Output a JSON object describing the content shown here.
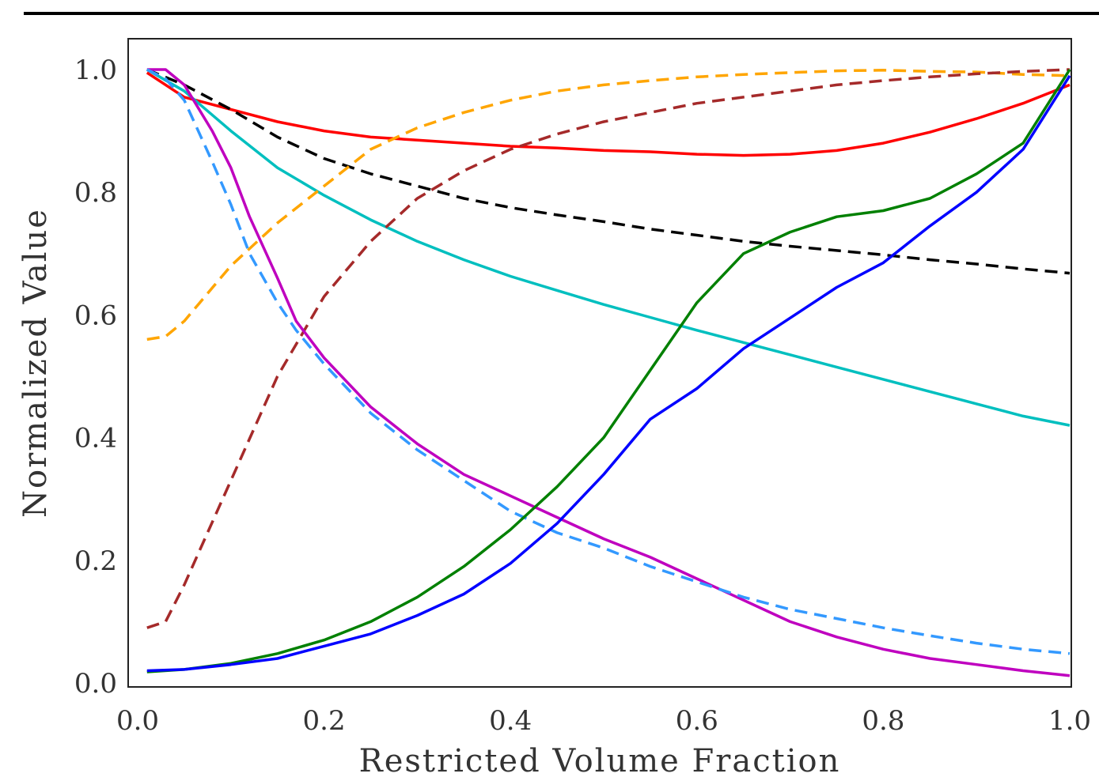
{
  "chart_data": {
    "type": "line",
    "title": "",
    "xlabel": "Restricted Volume Fraction",
    "ylabel": "Normalized Value",
    "xlim": [
      0.0,
      1.0
    ],
    "ylim": [
      0.0,
      1.0
    ],
    "x_ticks": [
      "0.0",
      "0.2",
      "0.4",
      "0.6",
      "0.8",
      "1.0"
    ],
    "y_ticks": [
      "0.0",
      "0.2",
      "0.4",
      "0.6",
      "0.8",
      "1.0"
    ],
    "grid": false,
    "legend": "none",
    "series": [
      {
        "color": "#ff0000",
        "style": "solid",
        "x": [
          0.01,
          0.05,
          0.1,
          0.15,
          0.2,
          0.25,
          0.3,
          0.35,
          0.4,
          0.45,
          0.5,
          0.55,
          0.6,
          0.65,
          0.7,
          0.75,
          0.8,
          0.85,
          0.9,
          0.95,
          1.0
        ],
        "y": [
          0.995,
          0.955,
          0.935,
          0.915,
          0.9,
          0.89,
          0.885,
          0.88,
          0.875,
          0.872,
          0.868,
          0.866,
          0.862,
          0.86,
          0.862,
          0.868,
          0.88,
          0.898,
          0.92,
          0.945,
          0.975
        ]
      },
      {
        "color": "#00bfbf",
        "style": "solid",
        "x": [
          0.01,
          0.05,
          0.1,
          0.15,
          0.2,
          0.25,
          0.3,
          0.35,
          0.4,
          0.45,
          0.5,
          0.55,
          0.6,
          0.65,
          0.7,
          0.75,
          0.8,
          0.85,
          0.9,
          0.95,
          1.0
        ],
        "y": [
          1.0,
          0.965,
          0.9,
          0.84,
          0.795,
          0.755,
          0.72,
          0.69,
          0.663,
          0.64,
          0.617,
          0.596,
          0.575,
          0.555,
          0.535,
          0.515,
          0.495,
          0.475,
          0.455,
          0.435,
          0.42
        ]
      },
      {
        "color": "#000000",
        "style": "dashed",
        "x": [
          0.01,
          0.05,
          0.1,
          0.15,
          0.2,
          0.25,
          0.3,
          0.35,
          0.4,
          0.45,
          0.5,
          0.55,
          0.6,
          0.65,
          0.7,
          0.75,
          0.8,
          0.85,
          0.9,
          0.95,
          1.0
        ],
        "y": [
          1.0,
          0.975,
          0.935,
          0.89,
          0.855,
          0.83,
          0.81,
          0.79,
          0.775,
          0.763,
          0.752,
          0.74,
          0.73,
          0.72,
          0.712,
          0.705,
          0.698,
          0.69,
          0.683,
          0.675,
          0.668
        ]
      },
      {
        "color": "#ffa500",
        "style": "dashed",
        "x": [
          0.01,
          0.03,
          0.05,
          0.1,
          0.15,
          0.2,
          0.25,
          0.3,
          0.35,
          0.4,
          0.45,
          0.5,
          0.55,
          0.6,
          0.65,
          0.7,
          0.75,
          0.8,
          0.85,
          0.9,
          0.95,
          1.0
        ],
        "y": [
          0.56,
          0.565,
          0.59,
          0.68,
          0.75,
          0.81,
          0.87,
          0.905,
          0.93,
          0.95,
          0.965,
          0.975,
          0.982,
          0.988,
          0.992,
          0.995,
          0.998,
          0.999,
          0.997,
          0.996,
          0.992,
          0.99
        ]
      },
      {
        "color": "#a52a2a",
        "style": "dashed",
        "x": [
          0.01,
          0.03,
          0.05,
          0.1,
          0.15,
          0.2,
          0.25,
          0.3,
          0.35,
          0.4,
          0.45,
          0.5,
          0.55,
          0.6,
          0.65,
          0.7,
          0.75,
          0.8,
          0.85,
          0.9,
          0.95,
          1.0
        ],
        "y": [
          0.09,
          0.1,
          0.16,
          0.33,
          0.5,
          0.63,
          0.72,
          0.79,
          0.835,
          0.87,
          0.895,
          0.915,
          0.93,
          0.945,
          0.955,
          0.965,
          0.975,
          0.982,
          0.988,
          0.993,
          0.997,
          1.0
        ]
      },
      {
        "color": "#bf00bf",
        "style": "solid",
        "x": [
          0.01,
          0.03,
          0.05,
          0.08,
          0.1,
          0.12,
          0.15,
          0.17,
          0.2,
          0.25,
          0.3,
          0.35,
          0.4,
          0.45,
          0.5,
          0.55,
          0.6,
          0.65,
          0.7,
          0.75,
          0.8,
          0.85,
          0.9,
          0.95,
          1.0
        ],
        "y": [
          1.0,
          1.0,
          0.975,
          0.9,
          0.84,
          0.76,
          0.66,
          0.59,
          0.53,
          0.45,
          0.39,
          0.34,
          0.305,
          0.27,
          0.235,
          0.205,
          0.17,
          0.135,
          0.1,
          0.075,
          0.055,
          0.04,
          0.03,
          0.02,
          0.012
        ]
      },
      {
        "color": "#3399ff",
        "style": "dashed",
        "x": [
          0.01,
          0.03,
          0.05,
          0.08,
          0.1,
          0.12,
          0.15,
          0.17,
          0.2,
          0.25,
          0.3,
          0.35,
          0.4,
          0.45,
          0.5,
          0.55,
          0.6,
          0.65,
          0.7,
          0.75,
          0.8,
          0.85,
          0.9,
          0.95,
          1.0
        ],
        "y": [
          1.0,
          0.985,
          0.95,
          0.85,
          0.78,
          0.7,
          0.62,
          0.575,
          0.52,
          0.44,
          0.38,
          0.33,
          0.28,
          0.245,
          0.22,
          0.19,
          0.165,
          0.14,
          0.12,
          0.105,
          0.09,
          0.077,
          0.065,
          0.055,
          0.048
        ]
      },
      {
        "color": "#008000",
        "style": "solid",
        "x": [
          0.01,
          0.05,
          0.1,
          0.15,
          0.2,
          0.25,
          0.3,
          0.35,
          0.4,
          0.45,
          0.5,
          0.55,
          0.6,
          0.65,
          0.7,
          0.75,
          0.8,
          0.85,
          0.9,
          0.95,
          1.0
        ],
        "y": [
          0.018,
          0.022,
          0.032,
          0.048,
          0.07,
          0.1,
          0.14,
          0.19,
          0.25,
          0.32,
          0.4,
          0.51,
          0.62,
          0.7,
          0.735,
          0.76,
          0.77,
          0.79,
          0.83,
          0.88,
          1.0
        ]
      },
      {
        "color": "#0000ff",
        "style": "solid",
        "x": [
          0.01,
          0.05,
          0.1,
          0.15,
          0.2,
          0.25,
          0.3,
          0.35,
          0.4,
          0.45,
          0.5,
          0.55,
          0.6,
          0.65,
          0.7,
          0.75,
          0.8,
          0.85,
          0.9,
          0.95,
          1.0
        ],
        "y": [
          0.02,
          0.022,
          0.03,
          0.04,
          0.06,
          0.08,
          0.11,
          0.145,
          0.195,
          0.26,
          0.34,
          0.43,
          0.48,
          0.545,
          0.595,
          0.645,
          0.685,
          0.745,
          0.8,
          0.87,
          0.99
        ]
      }
    ]
  }
}
